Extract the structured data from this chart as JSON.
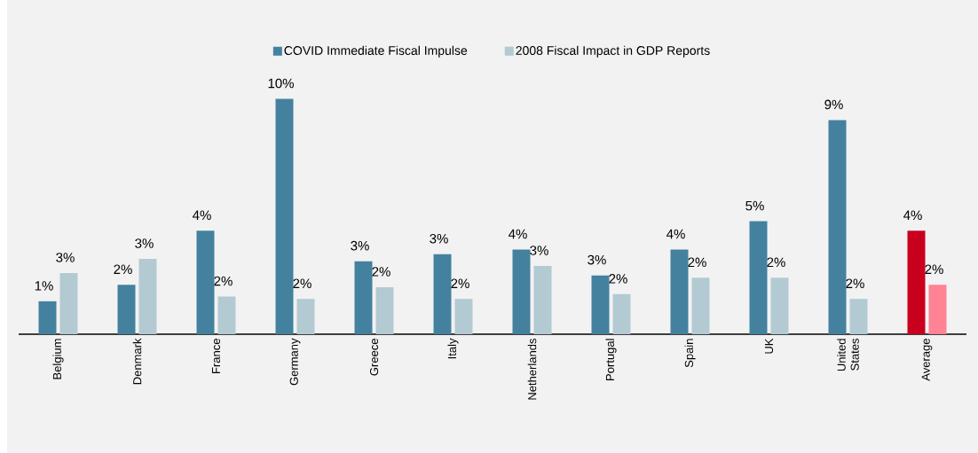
{
  "chart_data": {
    "type": "bar",
    "categories": [
      "Belgium",
      "Denmark",
      "France",
      "Germany",
      "Greece",
      "Italy",
      "Netherlands",
      "Portugal",
      "Spain",
      "UK",
      "United States",
      "Average"
    ],
    "series": [
      {
        "name": "COVID Immediate Fiscal Impulse",
        "color": "#44819e",
        "colors": [
          "#44819e",
          "#44819e",
          "#44819e",
          "#44819e",
          "#44819e",
          "#44819e",
          "#44819e",
          "#44819e",
          "#44819e",
          "#44819e",
          "#44819e",
          "#c8001e"
        ],
        "values": [
          1.4,
          2.1,
          4.4,
          10.0,
          3.1,
          3.4,
          3.6,
          2.5,
          3.6,
          4.8,
          9.1,
          4.4
        ],
        "value_labels": [
          "1%",
          "2%",
          "4%",
          "10%",
          "3%",
          "3%",
          "4%",
          "3%",
          "4%",
          "5%",
          "9%",
          "4%"
        ]
      },
      {
        "name": "2008 Fiscal Impact in GDP Reports",
        "color": "#b3cad3",
        "colors": [
          "#b3cad3",
          "#b3cad3",
          "#b3cad3",
          "#b3cad3",
          "#b3cad3",
          "#b3cad3",
          "#b3cad3",
          "#b3cad3",
          "#b3cad3",
          "#b3cad3",
          "#b3cad3",
          "#ff8295"
        ],
        "values": [
          2.6,
          3.2,
          1.6,
          1.5,
          2.0,
          1.5,
          2.9,
          1.7,
          2.4,
          2.4,
          1.5,
          2.1
        ],
        "value_labels": [
          "3%",
          "3%",
          "2%",
          "2%",
          "2%",
          "2%",
          "3%",
          "2%",
          "2%",
          "2%",
          "2%",
          "2%"
        ]
      }
    ],
    "legend": "top",
    "tick_labels": "x"
  }
}
